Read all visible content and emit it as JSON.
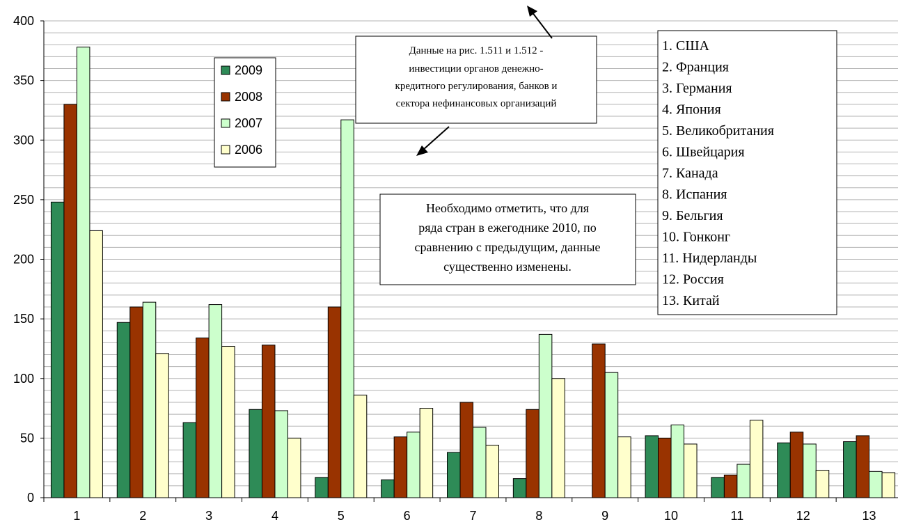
{
  "chart_data": {
    "type": "bar",
    "categories": [
      "1",
      "2",
      "3",
      "4",
      "5",
      "6",
      "7",
      "8",
      "9",
      "10",
      "11",
      "12",
      "13"
    ],
    "series": [
      {
        "name": "2009",
        "color": "#2e8b57",
        "values": [
          248,
          147,
          63,
          74,
          17,
          15,
          38,
          16,
          null,
          52,
          17,
          46,
          47
        ]
      },
      {
        "name": "2008",
        "color": "#993300",
        "values": [
          330,
          160,
          134,
          128,
          160,
          51,
          80,
          74,
          129,
          50,
          19,
          55,
          52
        ]
      },
      {
        "name": "2007",
        "color": "#ccffcc",
        "values": [
          378,
          164,
          162,
          73,
          317,
          55,
          59,
          137,
          105,
          61,
          28,
          45,
          22
        ]
      },
      {
        "name": "2006",
        "color": "#ffffcc",
        "values": [
          224,
          121,
          127,
          50,
          86,
          75,
          44,
          100,
          51,
          45,
          65,
          23,
          21
        ]
      }
    ],
    "yticks": [
      0,
      50,
      100,
      150,
      200,
      250,
      300,
      350,
      400
    ],
    "ylim": [
      0,
      400
    ],
    "grid": true,
    "legend_placement": "top-left"
  },
  "annotations": {
    "note_top_lines": [
      "Данные на рис. 1.511 и 1.512 -",
      "инвестиции органов денежно-",
      "кредитного регулирования, банков и",
      "сектора нефинансовых организаций"
    ],
    "note_mid_lines": [
      "Необходимо отметить, что для",
      "ряда стран в ежегоднике 2010, по",
      "сравнению с предыдущим, данные",
      "существенно изменены."
    ],
    "countries": [
      "1. США",
      "2. Франция",
      "3. Германия",
      "4. Япония",
      "5. Великобритания",
      "6. Швейцария",
      "7. Канада",
      "8. Испания",
      "9. Бельгия",
      "10. Гонконг",
      "11. Нидерланды",
      "12. Россия",
      "13. Китай"
    ]
  }
}
